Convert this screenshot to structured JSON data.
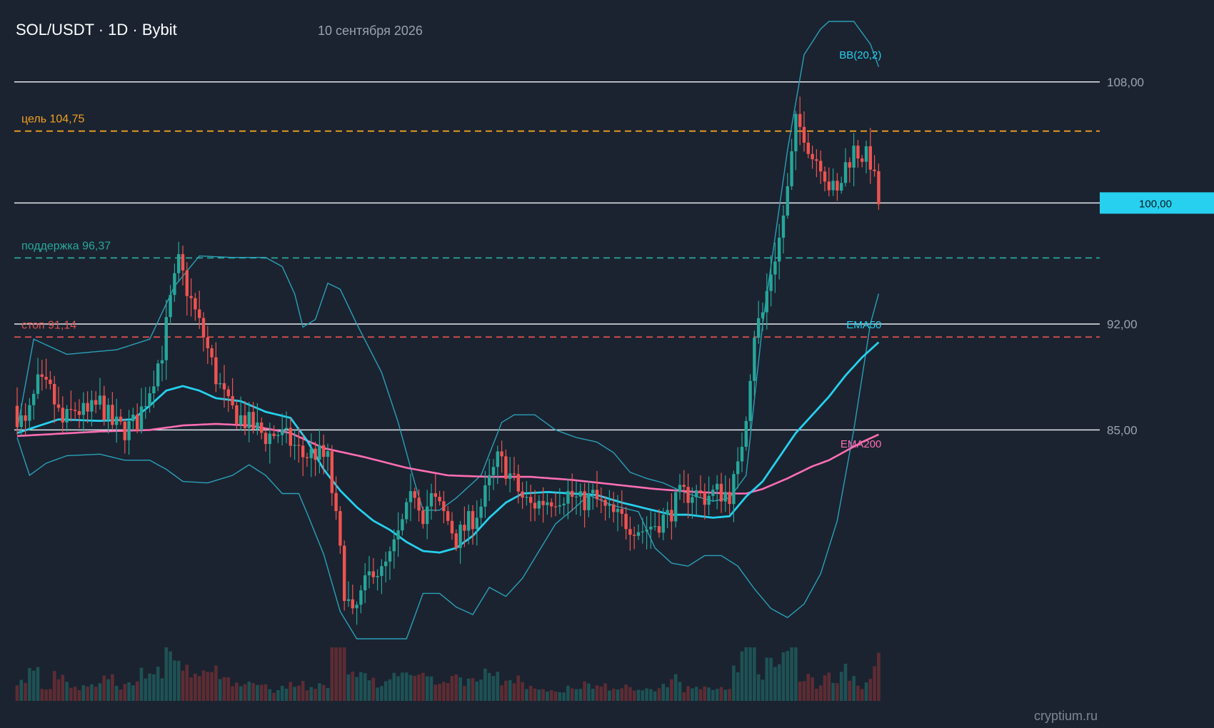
{
  "header": {
    "title": "SOL/USDT · 1D · Bybit",
    "date": "10 сентября 2026"
  },
  "watermark": "cryptium.ru",
  "chart_data": {
    "type": "candlestick",
    "title": "SOL/USDT · 1D · Bybit",
    "subtitle": "10 сентября 2026",
    "y_range": [
      71.2,
      112.0
    ],
    "y_ticks": [
      {
        "value": 108,
        "label": "108,00"
      },
      {
        "value": 92,
        "label": "92,00"
      },
      {
        "value": 85,
        "label": "85,00"
      }
    ],
    "hlines_white": [
      108,
      100,
      92,
      85
    ],
    "current_price": {
      "value": 100,
      "label": "100,00",
      "color": "#26d0ee"
    },
    "levels": [
      {
        "name": "target",
        "label": "цель 104,75",
        "value": 104.75,
        "color": "#f0a020"
      },
      {
        "name": "support",
        "label": "поддержка 96,37",
        "value": 96.37,
        "color": "#2aa79b"
      },
      {
        "name": "stop",
        "label": "стоп 91,14",
        "value": 91.14,
        "color": "#e0524f"
      }
    ],
    "indicator_labels": [
      {
        "name": "bollinger",
        "label": "BB(20,2)",
        "color": "#26d0ee"
      },
      {
        "name": "ema50",
        "label": "EMA50",
        "color": "#26d0ee"
      },
      {
        "name": "ema200",
        "label": "EMA200",
        "color": "#ff6eb4"
      }
    ],
    "colors": {
      "up": "#26a69a",
      "down": "#ef5350",
      "ema50": "#26d0ee",
      "ema200": "#ff6eb4",
      "bb": "#2aa0b8",
      "background": "#1b2330"
    },
    "close_keypoints": [
      [
        0,
        86.0
      ],
      [
        2,
        85.2
      ],
      [
        5,
        88.0
      ],
      [
        8,
        87.5
      ],
      [
        11,
        85.4
      ],
      [
        14,
        86.4
      ],
      [
        17,
        86.0
      ],
      [
        20,
        86.8
      ],
      [
        23,
        85.4
      ],
      [
        26,
        85.0
      ],
      [
        29,
        85.6
      ],
      [
        32,
        87.8
      ],
      [
        35,
        90.2
      ],
      [
        37,
        93.5
      ],
      [
        39,
        96.0
      ],
      [
        42,
        93.5
      ],
      [
        45,
        91.2
      ],
      [
        48,
        88.5
      ],
      [
        51,
        86.5
      ],
      [
        54,
        85.8
      ],
      [
        57,
        85.2
      ],
      [
        60,
        84.6
      ],
      [
        63,
        84.8
      ],
      [
        66,
        84.2
      ],
      [
        69,
        83.3
      ],
      [
        72,
        83.5
      ],
      [
        75,
        83.0
      ],
      [
        77,
        79.0
      ],
      [
        79,
        74.5
      ],
      [
        81,
        72.5
      ],
      [
        83,
        74.0
      ],
      [
        86,
        76.0
      ],
      [
        88,
        75.5
      ],
      [
        90,
        76.5
      ],
      [
        92,
        78.0
      ],
      [
        94,
        79.5
      ],
      [
        96,
        81.0
      ],
      [
        98,
        79.5
      ],
      [
        100,
        80.5
      ],
      [
        102,
        79.8
      ],
      [
        104,
        79.0
      ],
      [
        106,
        77.8
      ],
      [
        108,
        78.5
      ],
      [
        110,
        79.2
      ],
      [
        112,
        80.0
      ],
      [
        114,
        81.5
      ],
      [
        116,
        83.0
      ],
      [
        118,
        82.5
      ],
      [
        120,
        81.5
      ],
      [
        122,
        80.5
      ],
      [
        124,
        80.0
      ],
      [
        127,
        80.3
      ],
      [
        130,
        80.6
      ],
      [
        133,
        80.8
      ],
      [
        136,
        80.2
      ],
      [
        139,
        80.6
      ],
      [
        142,
        79.7
      ],
      [
        145,
        79.2
      ],
      [
        148,
        78.8
      ],
      [
        151,
        78.4
      ],
      [
        154,
        78.8
      ],
      [
        157,
        79.3
      ],
      [
        160,
        80.6
      ],
      [
        163,
        80.9
      ],
      [
        166,
        80.6
      ],
      [
        169,
        80.9
      ],
      [
        172,
        80.8
      ],
      [
        174,
        82.3
      ],
      [
        176,
        86.2
      ],
      [
        178,
        91.5
      ],
      [
        180,
        92.7
      ],
      [
        182,
        95.5
      ],
      [
        184,
        97.6
      ],
      [
        186,
        100.8
      ],
      [
        188,
        105.2
      ],
      [
        190,
        104.7
      ],
      [
        192,
        103.1
      ],
      [
        194,
        102.8
      ],
      [
        196,
        101.2
      ],
      [
        198,
        100.5
      ],
      [
        200,
        102.5
      ],
      [
        202,
        103.5
      ],
      [
        204,
        103.2
      ],
      [
        206,
        102.8
      ],
      [
        208,
        100.0
      ]
    ],
    "ema50_keypoints": [
      [
        0,
        84.8
      ],
      [
        10,
        85.7
      ],
      [
        20,
        85.6
      ],
      [
        28,
        85.7
      ],
      [
        32,
        86.6
      ],
      [
        36,
        87.6
      ],
      [
        40,
        87.9
      ],
      [
        44,
        87.6
      ],
      [
        48,
        87.1
      ],
      [
        54,
        86.9
      ],
      [
        60,
        86.2
      ],
      [
        66,
        85.8
      ],
      [
        70,
        84.3
      ],
      [
        74,
        82.4
      ],
      [
        78,
        81.0
      ],
      [
        82,
        79.9
      ],
      [
        86,
        79.0
      ],
      [
        90,
        78.4
      ],
      [
        94,
        77.6
      ],
      [
        98,
        77.0
      ],
      [
        102,
        76.9
      ],
      [
        106,
        77.2
      ],
      [
        110,
        78.0
      ],
      [
        114,
        79.2
      ],
      [
        118,
        80.2
      ],
      [
        122,
        80.8
      ],
      [
        128,
        80.9
      ],
      [
        134,
        80.8
      ],
      [
        140,
        80.7
      ],
      [
        146,
        80.2
      ],
      [
        152,
        79.8
      ],
      [
        158,
        79.4
      ],
      [
        162,
        79.4
      ],
      [
        168,
        79.2
      ],
      [
        172,
        79.3
      ],
      [
        176,
        80.6
      ],
      [
        180,
        81.6
      ],
      [
        184,
        83.2
      ],
      [
        188,
        84.8
      ],
      [
        192,
        86.0
      ],
      [
        196,
        87.2
      ],
      [
        200,
        88.6
      ],
      [
        204,
        89.8
      ],
      [
        208,
        90.8
      ]
    ],
    "ema200_keypoints": [
      [
        0,
        84.6
      ],
      [
        20,
        84.9
      ],
      [
        32,
        85.0
      ],
      [
        40,
        85.3
      ],
      [
        48,
        85.4
      ],
      [
        56,
        85.3
      ],
      [
        66,
        84.8
      ],
      [
        74,
        83.8
      ],
      [
        84,
        83.2
      ],
      [
        94,
        82.5
      ],
      [
        104,
        82.0
      ],
      [
        114,
        81.9
      ],
      [
        124,
        81.9
      ],
      [
        134,
        81.7
      ],
      [
        144,
        81.4
      ],
      [
        154,
        81.1
      ],
      [
        164,
        80.9
      ],
      [
        172,
        80.8
      ],
      [
        176,
        80.8
      ],
      [
        180,
        81.1
      ],
      [
        186,
        81.8
      ],
      [
        192,
        82.6
      ],
      [
        196,
        83.0
      ],
      [
        200,
        83.6
      ],
      [
        204,
        84.2
      ],
      [
        208,
        84.7
      ]
    ],
    "bb_upper_keypoints": [
      [
        0,
        85.0
      ],
      [
        4,
        91.0
      ],
      [
        12,
        90.0
      ],
      [
        24,
        90.3
      ],
      [
        32,
        91.0
      ],
      [
        38,
        94.5
      ],
      [
        44,
        96.5
      ],
      [
        52,
        96.4
      ],
      [
        60,
        96.4
      ],
      [
        64,
        95.8
      ],
      [
        67,
        94.0
      ],
      [
        69,
        91.8
      ],
      [
        72,
        92.3
      ],
      [
        75,
        94.7
      ],
      [
        78,
        94.3
      ],
      [
        82,
        92.0
      ],
      [
        88,
        88.8
      ],
      [
        92,
        85.5
      ],
      [
        96,
        81.5
      ],
      [
        98,
        79.7
      ],
      [
        102,
        79.7
      ],
      [
        106,
        80.5
      ],
      [
        112,
        82.0
      ],
      [
        117,
        85.5
      ],
      [
        120,
        86.0
      ],
      [
        125,
        86.0
      ],
      [
        130,
        85.0
      ],
      [
        135,
        84.5
      ],
      [
        140,
        84.2
      ],
      [
        144,
        83.5
      ],
      [
        148,
        82.2
      ],
      [
        152,
        81.8
      ],
      [
        156,
        81.5
      ],
      [
        160,
        81.0
      ],
      [
        164,
        80.6
      ],
      [
        168,
        80.3
      ],
      [
        172,
        80.5
      ],
      [
        176,
        82.0
      ],
      [
        180,
        92.0
      ],
      [
        186,
        103.5
      ],
      [
        190,
        109.8
      ],
      [
        194,
        111.5
      ],
      [
        196,
        112.0
      ],
      [
        202,
        112.0
      ],
      [
        206,
        110.5
      ],
      [
        208,
        109.0
      ]
    ],
    "bb_lower_keypoints": [
      [
        0,
        84.5
      ],
      [
        3,
        82.0
      ],
      [
        7,
        82.8
      ],
      [
        12,
        83.3
      ],
      [
        20,
        83.4
      ],
      [
        26,
        83.0
      ],
      [
        32,
        83.0
      ],
      [
        36,
        82.4
      ],
      [
        40,
        81.6
      ],
      [
        46,
        81.5
      ],
      [
        52,
        82.0
      ],
      [
        56,
        82.7
      ],
      [
        60,
        82.0
      ],
      [
        64,
        80.8
      ],
      [
        68,
        80.8
      ],
      [
        70,
        79.5
      ],
      [
        74,
        76.8
      ],
      [
        78,
        73.0
      ],
      [
        82,
        71.2
      ],
      [
        88,
        71.2
      ],
      [
        94,
        71.2
      ],
      [
        98,
        74.2
      ],
      [
        102,
        74.2
      ],
      [
        106,
        73.3
      ],
      [
        110,
        72.8
      ],
      [
        114,
        74.6
      ],
      [
        118,
        74.0
      ],
      [
        122,
        75.2
      ],
      [
        126,
        77.0
      ],
      [
        130,
        78.8
      ],
      [
        134,
        79.7
      ],
      [
        138,
        80.7
      ],
      [
        144,
        80.0
      ],
      [
        150,
        79.6
      ],
      [
        154,
        77.2
      ],
      [
        158,
        76.2
      ],
      [
        162,
        76.0
      ],
      [
        166,
        76.7
      ],
      [
        170,
        76.7
      ],
      [
        174,
        76.0
      ],
      [
        178,
        74.5
      ],
      [
        182,
        73.2
      ],
      [
        186,
        72.6
      ],
      [
        190,
        73.5
      ],
      [
        194,
        75.5
      ],
      [
        198,
        79.0
      ],
      [
        202,
        85.0
      ],
      [
        206,
        92.0
      ],
      [
        208,
        94.0
      ]
    ],
    "n_candles": 208
  }
}
